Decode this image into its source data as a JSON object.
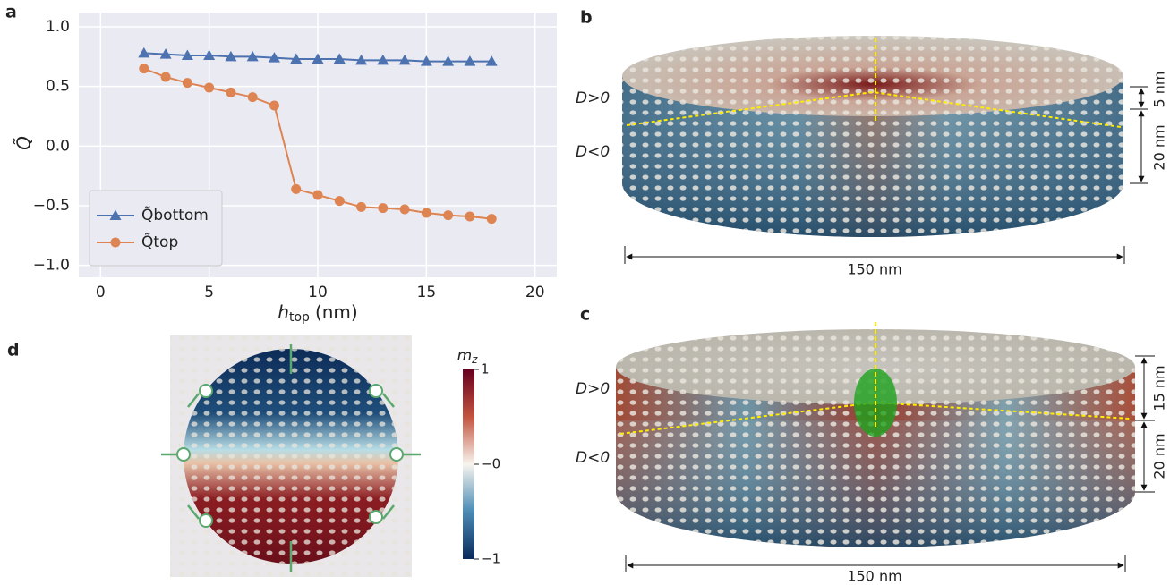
{
  "chart_data": {
    "type": "line",
    "panel": "a",
    "xlabel": {
      "symbol": "h",
      "subscript": "top",
      "unit": "(nm)"
    },
    "ylabel": "Q̃",
    "x": [
      2,
      3,
      4,
      5,
      6,
      7,
      8,
      9,
      10,
      11,
      12,
      13,
      14,
      15,
      16,
      17,
      18
    ],
    "series": [
      {
        "name": "Q̃bottom",
        "color": "#4c72b0",
        "marker": "triangle",
        "values": [
          0.78,
          0.77,
          0.76,
          0.76,
          0.75,
          0.75,
          0.74,
          0.73,
          0.73,
          0.73,
          0.72,
          0.72,
          0.72,
          0.71,
          0.71,
          0.71,
          0.71
        ]
      },
      {
        "name": "Q̃top",
        "color": "#dd8452",
        "marker": "circle",
        "values": [
          0.65,
          0.58,
          0.53,
          0.49,
          0.45,
          0.41,
          0.34,
          -0.36,
          -0.41,
          -0.46,
          -0.51,
          -0.52,
          -0.53,
          -0.56,
          -0.58,
          -0.59,
          -0.61
        ]
      }
    ],
    "xlim": [
      -1,
      21
    ],
    "ylim": [
      -1.1,
      1.12
    ],
    "xticks": [
      0,
      5,
      10,
      15,
      20
    ],
    "yticks": [
      {
        "value": 1,
        "label": "1.0"
      },
      {
        "value": 0.5,
        "label": "0.5"
      },
      {
        "value": 0,
        "label": "0.0"
      },
      {
        "value": -0.5,
        "label": "−0.5"
      },
      {
        "value": -1,
        "label": "−1.0"
      }
    ],
    "grid": true,
    "legend": "lower left"
  },
  "panel_b": {
    "label": "b",
    "d_positive": "D>0",
    "d_negative": "D<0",
    "top_thickness": "5 nm",
    "bottom_thickness": "20 nm",
    "diameter": "150 nm"
  },
  "panel_c": {
    "label": "c",
    "d_positive": "D>0",
    "d_negative": "D<0",
    "top_thickness": "15 nm",
    "bottom_thickness": "20 nm",
    "diameter": "150 nm"
  },
  "panel_d": {
    "label": "d",
    "colorbar": {
      "symbol": "m",
      "subscript": "z",
      "clim": [
        -1,
        1
      ],
      "ticks": [
        1,
        {
          "value": 0,
          "label": "−0"
        },
        {
          "value": -1,
          "label": "−1"
        }
      ]
    }
  }
}
